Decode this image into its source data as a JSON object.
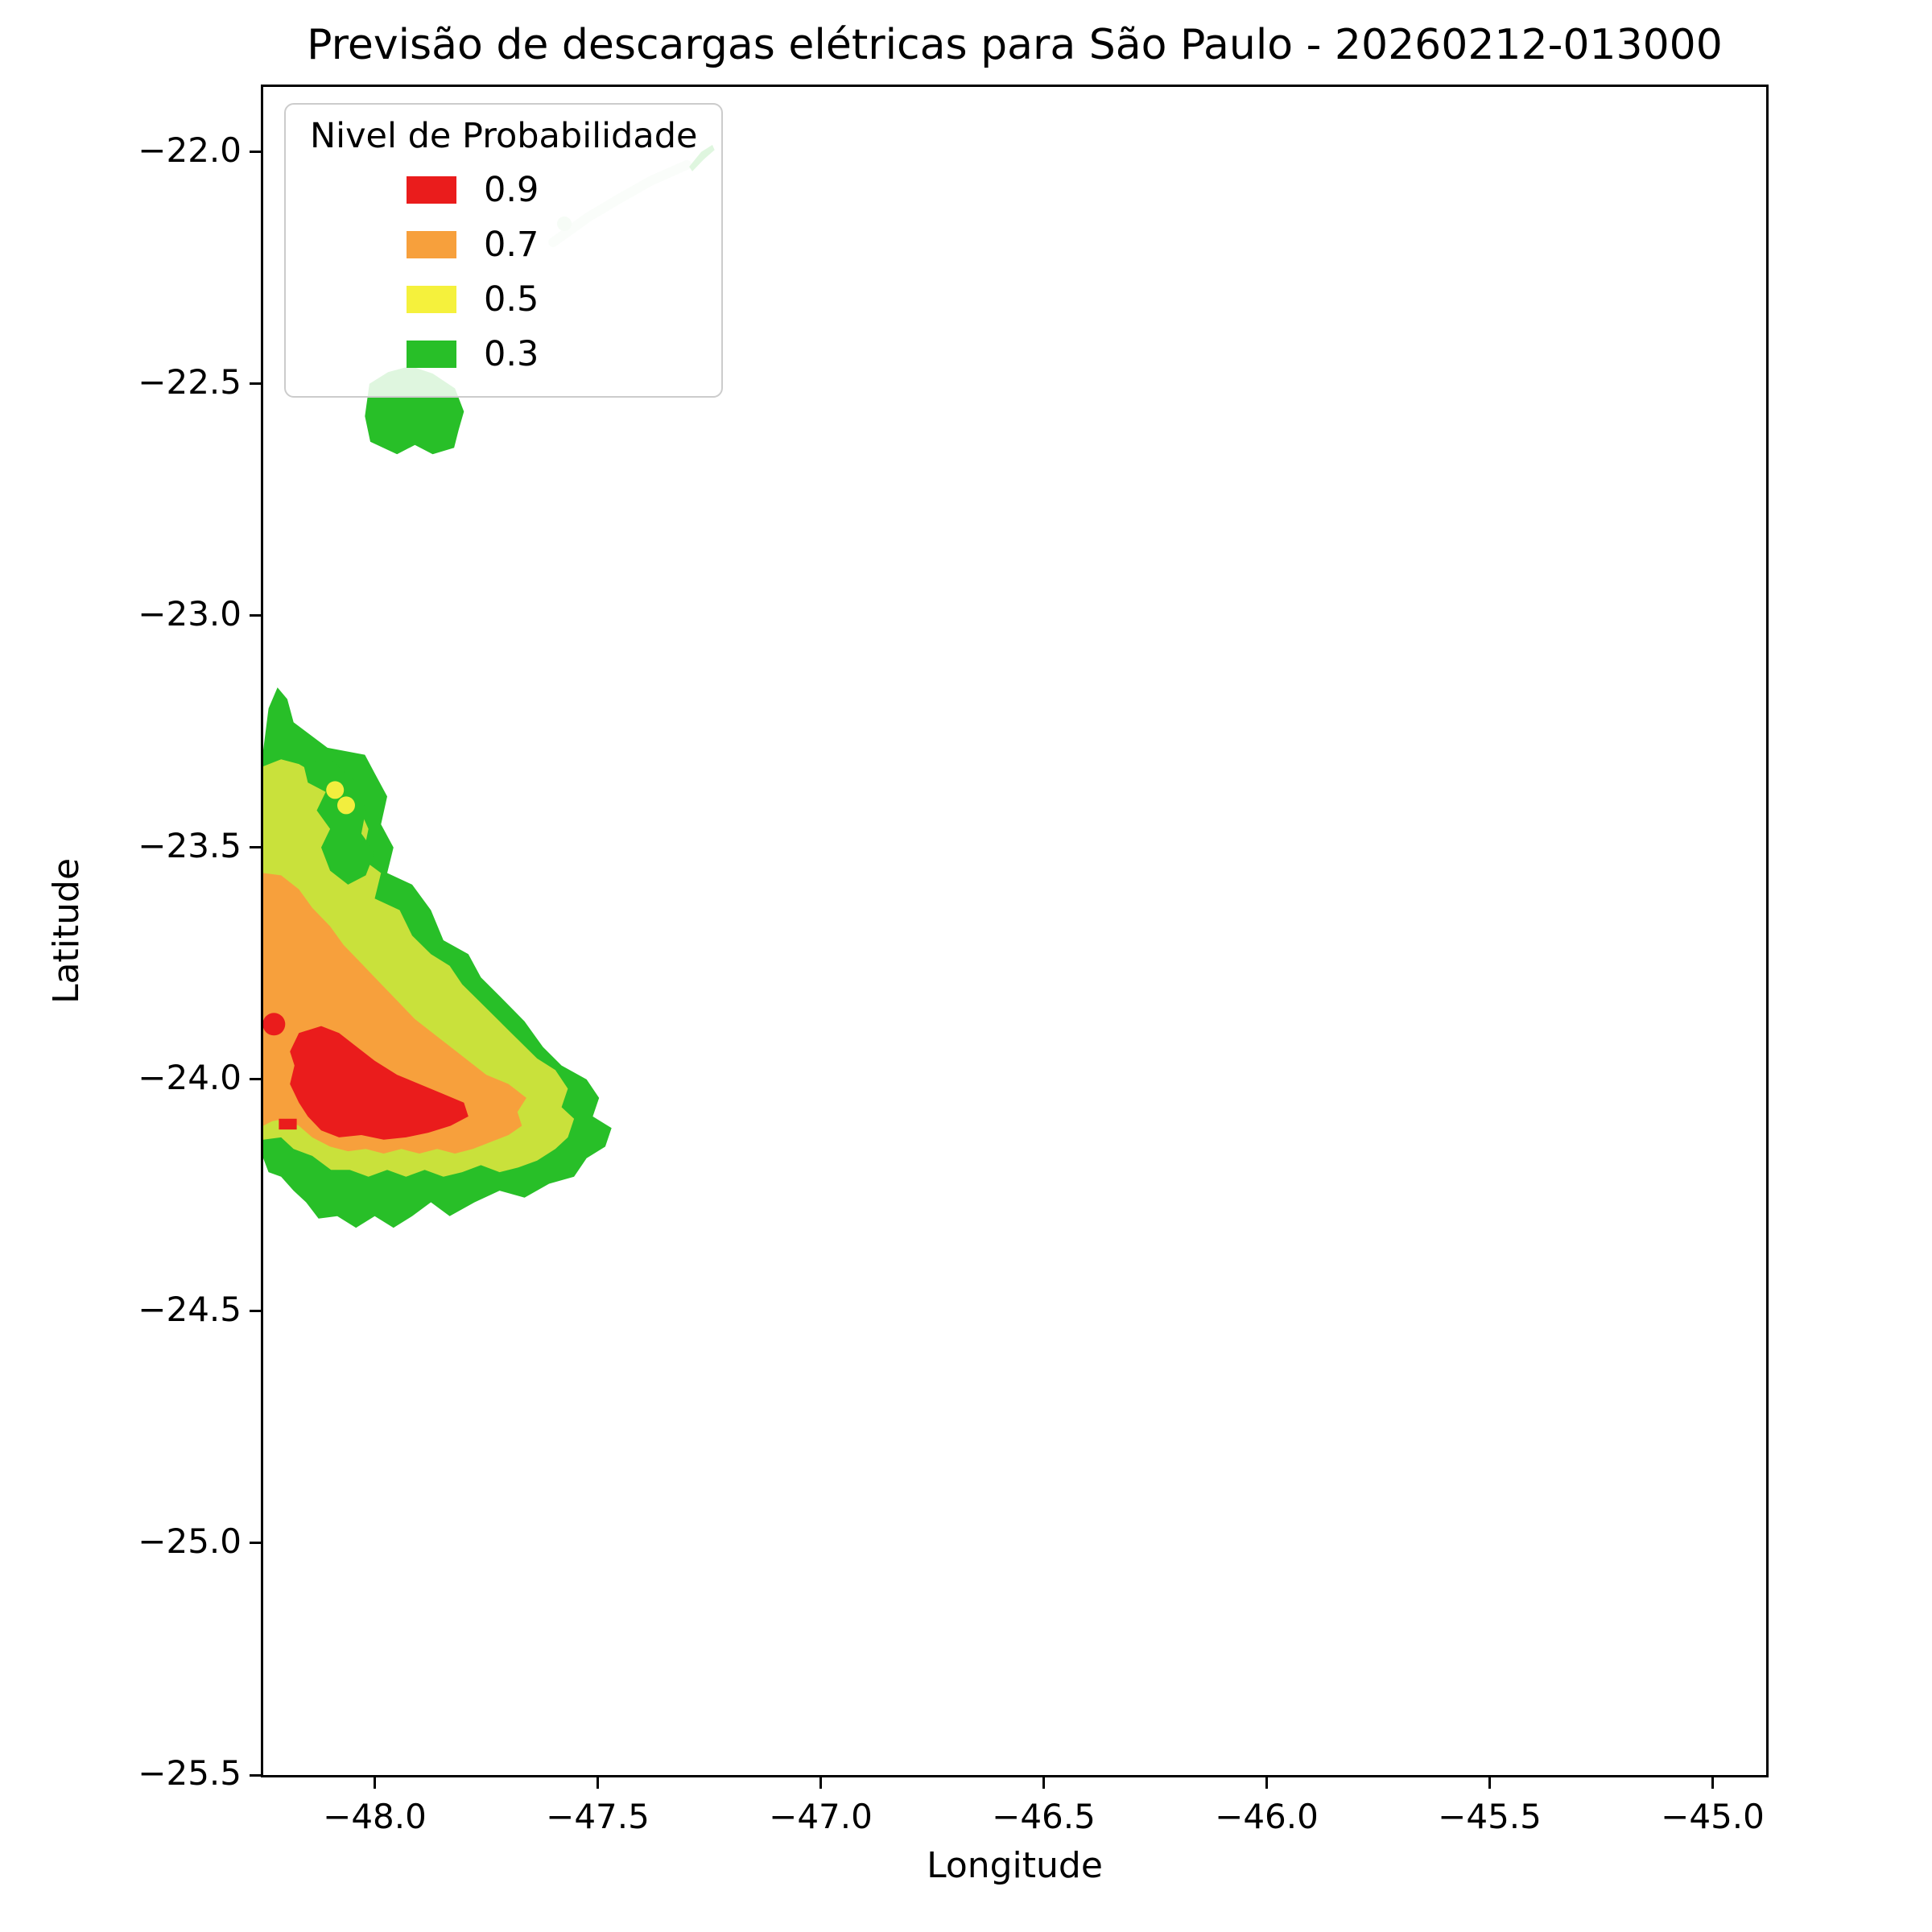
{
  "chart_data": {
    "type": "contour",
    "title": "Previsão de descargas elétricas para São Paulo - 20260212-013000",
    "xlabel": "Longitude",
    "ylabel": "Latitude",
    "xlim": [
      -48.25,
      -44.88
    ],
    "ylim": [
      -25.5,
      -21.86
    ],
    "grid": false,
    "xticks": [
      {
        "v": -48.0,
        "label": "−48.0"
      },
      {
        "v": -47.5,
        "label": "−47.5"
      },
      {
        "v": -47.0,
        "label": "−47.0"
      },
      {
        "v": -46.5,
        "label": "−46.5"
      },
      {
        "v": -46.0,
        "label": "−46.0"
      },
      {
        "v": -45.5,
        "label": "−45.5"
      },
      {
        "v": -45.0,
        "label": "−45.0"
      }
    ],
    "yticks": [
      {
        "v": -22.0,
        "label": "−22.0"
      },
      {
        "v": -22.5,
        "label": "−22.5"
      },
      {
        "v": -23.0,
        "label": "−23.0"
      },
      {
        "v": -23.5,
        "label": "−23.5"
      },
      {
        "v": -24.0,
        "label": "−24.0"
      },
      {
        "v": -24.5,
        "label": "−24.5"
      },
      {
        "v": -25.0,
        "label": "−25.0"
      },
      {
        "v": -25.5,
        "label": "−25.5"
      }
    ],
    "legend": {
      "title": "Nivel de Probabilidade",
      "position": "upper-left",
      "entries": [
        {
          "label": "0.9",
          "color": "#ea1c1c"
        },
        {
          "label": "0.7",
          "color": "#f7a03c"
        },
        {
          "label": "0.5",
          "color": "#f5f13c"
        },
        {
          "label": "0.3",
          "color": "#28bf28"
        }
      ]
    },
    "regions": [
      {
        "name": "pale-streak",
        "level": 0.1,
        "kind": "line",
        "color": "#d2efd2",
        "width": 12,
        "opacity": 0.85,
        "points": [
          [
            -47.6,
            -22.195
          ],
          [
            -47.52,
            -22.14
          ],
          [
            -47.45,
            -22.1
          ],
          [
            -47.38,
            -22.062
          ],
          [
            -47.3,
            -22.028
          ]
        ]
      },
      {
        "name": "prob-0.3-main",
        "level": 0.3,
        "kind": "area",
        "color": "#28bf28",
        "points": [
          [
            -48.25,
            -23.29
          ],
          [
            -48.238,
            -23.2
          ],
          [
            -48.218,
            -23.155
          ],
          [
            -48.196,
            -23.18
          ],
          [
            -48.182,
            -23.23
          ],
          [
            -48.106,
            -23.285
          ],
          [
            -48.022,
            -23.3
          ],
          [
            -48.0,
            -23.34
          ],
          [
            -47.972,
            -23.39
          ],
          [
            -47.986,
            -23.45
          ],
          [
            -47.958,
            -23.5
          ],
          [
            -47.972,
            -23.555
          ],
          [
            -47.916,
            -23.58
          ],
          [
            -47.874,
            -23.635
          ],
          [
            -47.846,
            -23.7
          ],
          [
            -47.79,
            -23.73
          ],
          [
            -47.762,
            -23.78
          ],
          [
            -47.72,
            -23.82
          ],
          [
            -47.664,
            -23.875
          ],
          [
            -47.623,
            -23.93
          ],
          [
            -47.581,
            -23.97
          ],
          [
            -47.525,
            -24.0
          ],
          [
            -47.497,
            -24.04
          ],
          [
            -47.511,
            -24.08
          ],
          [
            -47.469,
            -24.105
          ],
          [
            -47.483,
            -24.145
          ],
          [
            -47.525,
            -24.17
          ],
          [
            -47.553,
            -24.21
          ],
          [
            -47.609,
            -24.225
          ],
          [
            -47.664,
            -24.255
          ],
          [
            -47.72,
            -24.24
          ],
          [
            -47.776,
            -24.265
          ],
          [
            -47.832,
            -24.295
          ],
          [
            -47.874,
            -24.265
          ],
          [
            -47.916,
            -24.295
          ],
          [
            -47.958,
            -24.32
          ],
          [
            -48.0,
            -24.295
          ],
          [
            -48.042,
            -24.32
          ],
          [
            -48.084,
            -24.295
          ],
          [
            -48.126,
            -24.3
          ],
          [
            -48.154,
            -24.265
          ],
          [
            -48.182,
            -24.24
          ],
          [
            -48.21,
            -24.21
          ],
          [
            -48.238,
            -24.2
          ],
          [
            -48.25,
            -24.17
          ]
        ]
      },
      {
        "name": "prob-0.5-main",
        "level": 0.5,
        "kind": "area",
        "color": "#c9e13b",
        "points": [
          [
            -48.25,
            -23.325
          ],
          [
            -48.21,
            -23.31
          ],
          [
            -48.17,
            -23.32
          ],
          [
            -48.126,
            -23.345
          ],
          [
            -48.084,
            -23.36
          ],
          [
            -48.042,
            -23.4
          ],
          [
            -48.014,
            -23.46
          ],
          [
            -48.028,
            -23.525
          ],
          [
            -47.986,
            -23.555
          ],
          [
            -48.0,
            -23.61
          ],
          [
            -47.944,
            -23.635
          ],
          [
            -47.916,
            -23.69
          ],
          [
            -47.874,
            -23.73
          ],
          [
            -47.832,
            -23.755
          ],
          [
            -47.804,
            -23.795
          ],
          [
            -47.762,
            -23.835
          ],
          [
            -47.72,
            -23.875
          ],
          [
            -47.678,
            -23.915
          ],
          [
            -47.636,
            -23.955
          ],
          [
            -47.595,
            -23.98
          ],
          [
            -47.567,
            -24.02
          ],
          [
            -47.581,
            -24.06
          ],
          [
            -47.553,
            -24.085
          ],
          [
            -47.567,
            -24.125
          ],
          [
            -47.595,
            -24.15
          ],
          [
            -47.636,
            -24.175
          ],
          [
            -47.678,
            -24.19
          ],
          [
            -47.72,
            -24.2
          ],
          [
            -47.762,
            -24.185
          ],
          [
            -47.804,
            -24.2
          ],
          [
            -47.846,
            -24.21
          ],
          [
            -47.888,
            -24.195
          ],
          [
            -47.93,
            -24.21
          ],
          [
            -47.972,
            -24.195
          ],
          [
            -48.014,
            -24.21
          ],
          [
            -48.056,
            -24.195
          ],
          [
            -48.098,
            -24.195
          ],
          [
            -48.14,
            -24.165
          ],
          [
            -48.182,
            -24.15
          ],
          [
            -48.21,
            -24.125
          ],
          [
            -48.25,
            -24.13
          ]
        ]
      },
      {
        "name": "prob-0.3-island",
        "level": 0.3,
        "kind": "area",
        "color": "#28bf28",
        "points": [
          [
            -48.16,
            -23.32
          ],
          [
            -48.1,
            -23.31
          ],
          [
            -48.04,
            -23.36
          ],
          [
            -48.02,
            -23.42
          ],
          [
            -48.03,
            -23.47
          ],
          [
            -48.0,
            -23.51
          ],
          [
            -48.02,
            -23.56
          ],
          [
            -48.06,
            -23.58
          ],
          [
            -48.1,
            -23.55
          ],
          [
            -48.12,
            -23.5
          ],
          [
            -48.1,
            -23.46
          ],
          [
            -48.13,
            -23.42
          ],
          [
            -48.11,
            -23.38
          ],
          [
            -48.15,
            -23.36
          ]
        ]
      },
      {
        "name": "prob-0.7-main",
        "level": 0.7,
        "kind": "area",
        "color": "#f7a03c",
        "points": [
          [
            -48.25,
            -23.555
          ],
          [
            -48.21,
            -23.56
          ],
          [
            -48.17,
            -23.59
          ],
          [
            -48.14,
            -23.63
          ],
          [
            -48.1,
            -23.67
          ],
          [
            -48.07,
            -23.71
          ],
          [
            -48.03,
            -23.75
          ],
          [
            -47.99,
            -23.79
          ],
          [
            -47.95,
            -23.83
          ],
          [
            -47.91,
            -23.87
          ],
          [
            -47.87,
            -23.9
          ],
          [
            -47.83,
            -23.93
          ],
          [
            -47.79,
            -23.96
          ],
          [
            -47.75,
            -23.99
          ],
          [
            -47.7,
            -24.01
          ],
          [
            -47.66,
            -24.04
          ],
          [
            -47.68,
            -24.07
          ],
          [
            -47.67,
            -24.1
          ],
          [
            -47.7,
            -24.12
          ],
          [
            -47.74,
            -24.135
          ],
          [
            -47.78,
            -24.15
          ],
          [
            -47.82,
            -24.16
          ],
          [
            -47.86,
            -24.15
          ],
          [
            -47.9,
            -24.16
          ],
          [
            -47.94,
            -24.15
          ],
          [
            -47.98,
            -24.16
          ],
          [
            -48.02,
            -24.15
          ],
          [
            -48.06,
            -24.155
          ],
          [
            -48.1,
            -24.145
          ],
          [
            -48.14,
            -24.125
          ],
          [
            -48.17,
            -24.1
          ],
          [
            -48.2,
            -24.085
          ],
          [
            -48.23,
            -24.09
          ],
          [
            -48.25,
            -24.1
          ]
        ]
      },
      {
        "name": "prob-0.9-core",
        "level": 0.9,
        "kind": "area",
        "color": "#ea1c1c",
        "points": [
          [
            -48.17,
            -23.9
          ],
          [
            -48.12,
            -23.885
          ],
          [
            -48.08,
            -23.9
          ],
          [
            -48.04,
            -23.93
          ],
          [
            -48.0,
            -23.96
          ],
          [
            -47.95,
            -23.99
          ],
          [
            -47.9,
            -24.01
          ],
          [
            -47.85,
            -24.03
          ],
          [
            -47.8,
            -24.05
          ],
          [
            -47.79,
            -24.08
          ],
          [
            -47.83,
            -24.1
          ],
          [
            -47.88,
            -24.115
          ],
          [
            -47.93,
            -24.125
          ],
          [
            -47.98,
            -24.13
          ],
          [
            -48.03,
            -24.12
          ],
          [
            -48.08,
            -24.125
          ],
          [
            -48.12,
            -24.11
          ],
          [
            -48.15,
            -24.08
          ],
          [
            -48.17,
            -24.05
          ],
          [
            -48.19,
            -24.01
          ],
          [
            -48.18,
            -23.97
          ],
          [
            -48.19,
            -23.94
          ]
        ]
      },
      {
        "name": "prob-0.9-speck",
        "level": 0.9,
        "kind": "area",
        "color": "#ea1c1c",
        "points": [
          [
            -48.215,
            -24.085
          ],
          [
            -48.175,
            -24.085
          ],
          [
            -48.175,
            -24.108
          ],
          [
            -48.215,
            -24.108
          ]
        ]
      },
      {
        "name": "prob-0.3-north-blob",
        "level": 0.3,
        "kind": "area",
        "color": "#28bf28",
        "points": [
          [
            -48.012,
            -22.5
          ],
          [
            -47.97,
            -22.475
          ],
          [
            -47.92,
            -22.462
          ],
          [
            -47.87,
            -22.478
          ],
          [
            -47.82,
            -22.51
          ],
          [
            -47.8,
            -22.56
          ],
          [
            -47.812,
            -22.6
          ],
          [
            -47.822,
            -22.638
          ],
          [
            -47.87,
            -22.652
          ],
          [
            -47.91,
            -22.632
          ],
          [
            -47.95,
            -22.652
          ],
          [
            -48.01,
            -22.625
          ],
          [
            -48.022,
            -22.57
          ]
        ]
      },
      {
        "name": "prob-0.3-northeast-sliver",
        "level": 0.3,
        "kind": "area",
        "color": "#28bf28",
        "points": [
          [
            -47.295,
            -22.032
          ],
          [
            -47.268,
            -22.0
          ],
          [
            -47.243,
            -21.985
          ],
          [
            -47.238,
            -21.996
          ],
          [
            -47.262,
            -22.016
          ],
          [
            -47.288,
            -22.042
          ]
        ]
      }
    ],
    "markers": [
      {
        "name": "red-dot",
        "lon": -48.226,
        "lat": -23.881,
        "r": 14,
        "color": "#ea1c1c"
      },
      {
        "name": "yellow-dot-1",
        "lon": -48.089,
        "lat": -23.376,
        "r": 11,
        "color": "#f2ee3e"
      },
      {
        "name": "yellow-dot-2",
        "lon": -48.064,
        "lat": -23.409,
        "r": 11,
        "color": "#f2ee3e"
      },
      {
        "name": "pale-green-dot",
        "lon": -47.575,
        "lat": -22.155,
        "r": 9,
        "color": "#bfe7bf"
      }
    ]
  }
}
